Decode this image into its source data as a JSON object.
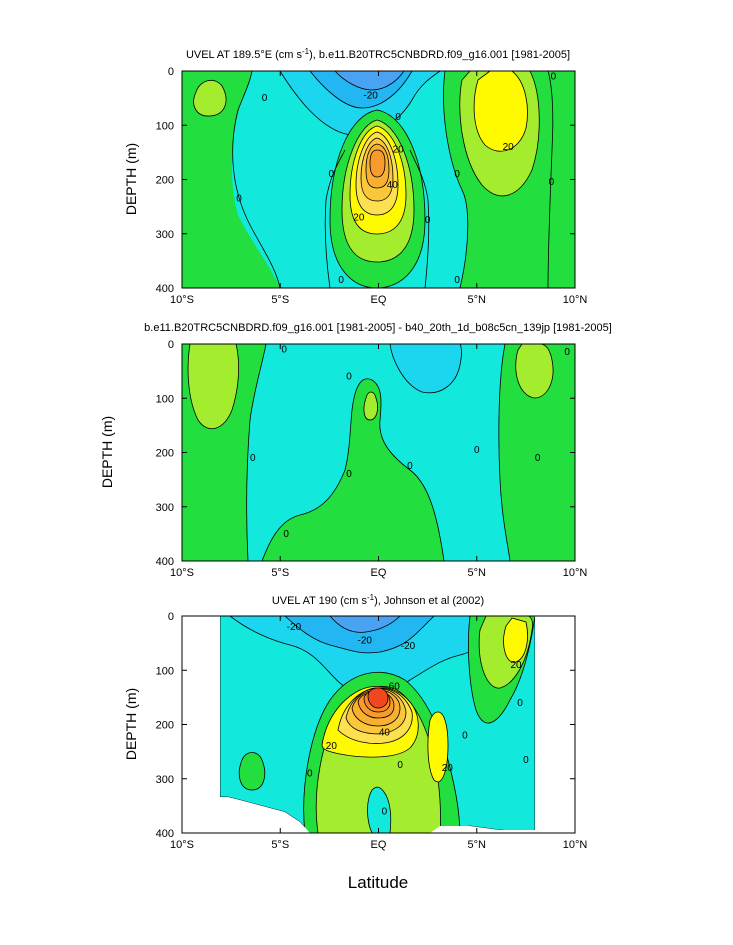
{
  "chart_data": [
    {
      "type": "contour",
      "title_main": "UVEL AT 189.5°E (cm s",
      "title_sup": "-1",
      "title_rest": "), b.e11.B20TRC5CNBDRD.f09_g16.001 [1981-2005]",
      "ylabel": "DEPTH (m)",
      "xticks": [
        "10°S",
        "5°S",
        "EQ",
        "5°N",
        "10°N"
      ],
      "yticks": [
        "0",
        "100",
        "200",
        "300",
        "400"
      ],
      "xlim": [
        -10,
        10
      ],
      "ylim": [
        0,
        400
      ],
      "contour_labels": [
        {
          "text": "0",
          "lat": -5.8,
          "depth": 50
        },
        {
          "text": "-20",
          "lat": -0.4,
          "depth": 45
        },
        {
          "text": "0",
          "lat": 1.0,
          "depth": 85
        },
        {
          "text": "20",
          "lat": 1.0,
          "depth": 145
        },
        {
          "text": "40",
          "lat": 0.7,
          "depth": 210
        },
        {
          "text": "0",
          "lat": -2.4,
          "depth": 190
        },
        {
          "text": "20",
          "lat": -1.0,
          "depth": 270
        },
        {
          "text": "0",
          "lat": 2.5,
          "depth": 275
        },
        {
          "text": "0",
          "lat": -7.1,
          "depth": 235
        },
        {
          "text": "0",
          "lat": -1.9,
          "depth": 385
        },
        {
          "text": "0",
          "lat": 4.0,
          "depth": 190
        },
        {
          "text": "0",
          "lat": 4.0,
          "depth": 385
        },
        {
          "text": "20",
          "lat": 6.6,
          "depth": 140
        },
        {
          "text": "0",
          "lat": 8.8,
          "depth": 205
        },
        {
          "text": "0",
          "lat": 8.9,
          "depth": 10
        }
      ]
    },
    {
      "type": "contour",
      "title_main": "b.e11.B20TRC5CNBDRD.f09_g16.001 [1981-2005] - b40_20th_1d_b08c5cn_139jp [1981-2005]",
      "ylabel": "DEPTH (m)",
      "xticks": [
        "10°S",
        "5°S",
        "EQ",
        "5°N",
        "10°N"
      ],
      "yticks": [
        "0",
        "100",
        "200",
        "300",
        "400"
      ],
      "xlim": [
        -10,
        10
      ],
      "ylim": [
        0,
        400
      ],
      "contour_labels": [
        {
          "text": "0",
          "lat": -4.8,
          "depth": 10
        },
        {
          "text": "0",
          "lat": -6.4,
          "depth": 210
        },
        {
          "text": "0",
          "lat": -1.5,
          "depth": 60
        },
        {
          "text": "0",
          "lat": -1.5,
          "depth": 240
        },
        {
          "text": "0",
          "lat": 1.6,
          "depth": 225
        },
        {
          "text": "0",
          "lat": -4.7,
          "depth": 350
        },
        {
          "text": "0",
          "lat": 5.0,
          "depth": 195
        },
        {
          "text": "0",
          "lat": 8.1,
          "depth": 210
        },
        {
          "text": "0",
          "lat": 9.6,
          "depth": 15
        }
      ]
    },
    {
      "type": "contour",
      "title_main": "UVEL AT 190 (cm s",
      "title_sup": "-1",
      "title_rest": "), Johnson et al (2002)",
      "ylabel": "DEPTH (m)",
      "xlabel": "Latitude",
      "xticks": [
        "10°S",
        "5°S",
        "EQ",
        "5°N",
        "10°N"
      ],
      "yticks": [
        "0",
        "100",
        "200",
        "300",
        "400"
      ],
      "xlim": [
        -10,
        10
      ],
      "ylim": [
        0,
        400
      ],
      "data_lat_range": [
        -8,
        8
      ],
      "contour_labels": [
        {
          "text": "-20",
          "lat": -4.3,
          "depth": 20
        },
        {
          "text": "-20",
          "lat": -0.7,
          "depth": 45
        },
        {
          "text": "-20",
          "lat": 1.5,
          "depth": 55
        },
        {
          "text": "60",
          "lat": 0.8,
          "depth": 130
        },
        {
          "text": "40",
          "lat": 0.3,
          "depth": 215
        },
        {
          "text": "20",
          "lat": -2.4,
          "depth": 240
        },
        {
          "text": "0",
          "lat": -3.5,
          "depth": 290
        },
        {
          "text": "0",
          "lat": 1.1,
          "depth": 275
        },
        {
          "text": "20",
          "lat": 3.5,
          "depth": 280
        },
        {
          "text": "0",
          "lat": 4.4,
          "depth": 220
        },
        {
          "text": "20",
          "lat": 7.0,
          "depth": 90
        },
        {
          "text": "0",
          "lat": 7.2,
          "depth": 160
        },
        {
          "text": "0",
          "lat": 7.5,
          "depth": 265
        },
        {
          "text": "0",
          "lat": 0.3,
          "depth": 360
        }
      ]
    }
  ],
  "shared_xlabel": "Latitude",
  "colors": {
    "cyan_light": "#12e8dc",
    "cyan_mid": "#1cd6f0",
    "cyan_dark": "#22b6f2",
    "blue_deep": "#4aa2f2",
    "green": "#22de3e",
    "yellowgreen": "#a4ec2e",
    "yellow": "#fffa00",
    "orange_light": "#fbc73a",
    "orange": "#f99b2c",
    "red": "#f0471f"
  }
}
